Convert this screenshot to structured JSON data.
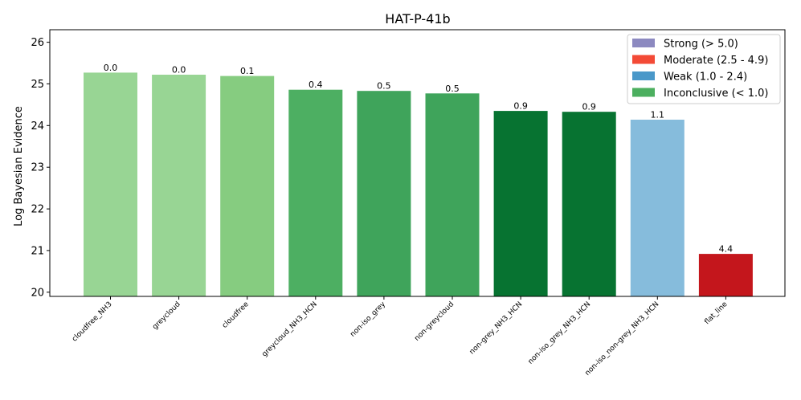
{
  "chart_data": {
    "type": "bar",
    "title": "HAT-P-41b",
    "xlabel": "",
    "ylabel": "Log Bayesian Evidence",
    "ylim": [
      19.9,
      26.3
    ],
    "yticks": [
      20,
      21,
      22,
      23,
      24,
      25,
      26
    ],
    "categories": [
      "cloudfree_NH3",
      "greycloud",
      "cloudfree",
      "greycloud_NH3_HCN",
      "non-iso_grey",
      "non-greycloud",
      "non-grey_NH3_HCN",
      "non-iso_grey_NH3_HCN",
      "non-iso_non-grey_NH3_HCN",
      "flat_line"
    ],
    "values": [
      25.28,
      25.23,
      25.2,
      24.87,
      24.84,
      24.78,
      24.36,
      24.34,
      24.15,
      20.93
    ],
    "data_labels": [
      "0.0",
      "0.0",
      "0.1",
      "0.4",
      "0.5",
      "0.5",
      "0.9",
      "0.9",
      "1.1",
      "4.4"
    ],
    "bar_colors": [
      "#98d594",
      "#98d594",
      "#86cc80",
      "#4daf62",
      "#3fa45b",
      "#3fa45b",
      "#077331",
      "#077331",
      "#86bcdc",
      "#c4161c"
    ],
    "grid": false,
    "legend": {
      "position": "top-right",
      "entries": [
        {
          "label": "Strong (> 5.0)",
          "color": "#8c89c0"
        },
        {
          "label": "Moderate (2.5 - 4.9)",
          "color": "#f34a36"
        },
        {
          "label": "Weak (1.0 - 2.4)",
          "color": "#4a98c9"
        },
        {
          "label": "Inconclusive (< 1.0)",
          "color": "#4caf5f"
        }
      ]
    }
  }
}
